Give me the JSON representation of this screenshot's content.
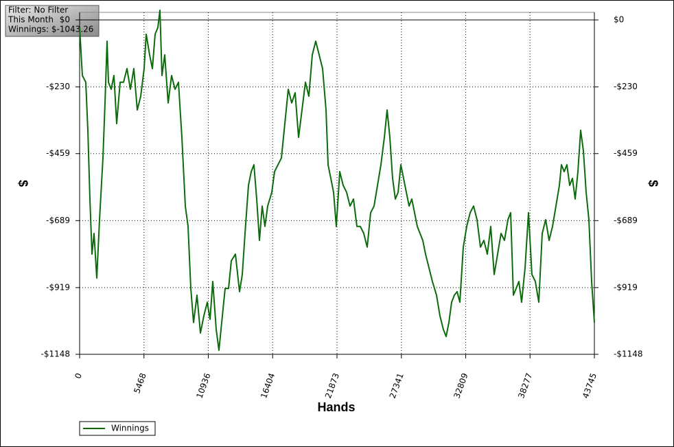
{
  "chart_data": {
    "type": "line",
    "annotations": [
      "Filter: No Filter",
      "This Month",
      "Winnings: $-1043.26"
    ],
    "x_label": "Hands",
    "y_label": "$",
    "y2_label": "$",
    "xlim": [
      0,
      43745
    ],
    "xticks": [
      0,
      5468,
      10936,
      16404,
      21873,
      27341,
      32809,
      38277,
      43745
    ],
    "ylim": [
      -1148,
      26
    ],
    "yticks": [
      {
        "value": 0,
        "label": "$0"
      },
      {
        "value": -230,
        "label": "-$230"
      },
      {
        "value": -459,
        "label": "-$459"
      },
      {
        "value": -689,
        "label": "-$689"
      },
      {
        "value": -919,
        "label": "-$919"
      },
      {
        "value": -1148,
        "label": "-$1148"
      }
    ],
    "grid": true,
    "legend": "bottom-left",
    "x": [
      0,
      233,
      525,
      700,
      875,
      1050,
      1225,
      1458,
      1691,
      1983,
      2158,
      2333,
      2450,
      2683,
      2916,
      3150,
      3441,
      3733,
      4025,
      4316,
      4608,
      4899,
      5191,
      5483,
      5658,
      5949,
      6183,
      6416,
      6649,
      6824,
      6999,
      7233,
      7524,
      7816,
      8107,
      8399,
      8691,
      8982,
      9216,
      9449,
      9682,
      9974,
      10266,
      10557,
      10849,
      11082,
      11315,
      11607,
      11840,
      12074,
      12365,
      12657,
      12890,
      13240,
      13590,
      13823,
      14057,
      14348,
      14582,
      14815,
      15048,
      15282,
      15515,
      15748,
      15982,
      16332,
      16565,
      16857,
      17148,
      17440,
      17731,
      18023,
      18315,
      18606,
      18898,
      19190,
      19481,
      19773,
      20064,
      20356,
      20648,
      20939,
      21114,
      21348,
      21581,
      21814,
      22106,
      22398,
      22689,
      22981,
      23272,
      23564,
      23856,
      24147,
      24439,
      24730,
      25022,
      25314,
      25605,
      25897,
      26130,
      26364,
      26597,
      26830,
      27064,
      27297,
      27530,
      27764,
      27997,
      28230,
      28464,
      28697,
      28930,
      29164,
      29397,
      29688,
      29980,
      30330,
      30622,
      30913,
      31147,
      31380,
      31613,
      31847,
      32080,
      32313,
      32605,
      32896,
      33188,
      33480,
      33771,
      34063,
      34355,
      34646,
      34938,
      35230,
      35521,
      35813,
      36104,
      36396,
      36629,
      36863,
      37096,
      37329,
      37563,
      37854,
      38146,
      38437,
      38729,
      39021,
      39312,
      39604,
      39896,
      40187,
      40479,
      40771,
      40946,
      41179,
      41412,
      41646,
      41879,
      42112,
      42345,
      42579,
      42812,
      43045,
      43279,
      43512,
      43745
    ],
    "series": [
      {
        "name": "Winnings",
        "color": "#0b6b0b",
        "values": [
          -26,
          -191,
          -214,
          -379,
          -615,
          -804,
          -733,
          -886,
          -686,
          -474,
          -285,
          -73,
          -214,
          -238,
          -191,
          -356,
          -214,
          -214,
          -167,
          -238,
          -167,
          -309,
          -262,
          -167,
          -49,
          -120,
          -167,
          -49,
          -26,
          33,
          -191,
          -120,
          -285,
          -191,
          -238,
          -214,
          -403,
          -639,
          -709,
          -922,
          -1039,
          -945,
          -1075,
          -1016,
          -969,
          -1028,
          -898,
          -1063,
          -1134,
          -1039,
          -922,
          -922,
          -827,
          -804,
          -933,
          -874,
          -733,
          -568,
          -521,
          -497,
          -615,
          -757,
          -639,
          -709,
          -639,
          -592,
          -521,
          -497,
          -474,
          -356,
          -238,
          -285,
          -250,
          -403,
          -309,
          -214,
          -262,
          -120,
          -73,
          -120,
          -167,
          -309,
          -497,
          -544,
          -592,
          -709,
          -521,
          -568,
          -592,
          -639,
          -615,
          -709,
          -709,
          -733,
          -780,
          -662,
          -639,
          -568,
          -497,
          -403,
          -309,
          -403,
          -544,
          -615,
          -592,
          -497,
          -544,
          -592,
          -639,
          -615,
          -662,
          -709,
          -733,
          -757,
          -804,
          -851,
          -898,
          -945,
          -1016,
          -1063,
          -1087,
          -1039,
          -969,
          -945,
          -933,
          -969,
          -780,
          -709,
          -662,
          -639,
          -686,
          -780,
          -757,
          -804,
          -709,
          -874,
          -804,
          -733,
          -757,
          -686,
          -662,
          -945,
          -922,
          -898,
          -969,
          -851,
          -662,
          -874,
          -898,
          -969,
          -733,
          -686,
          -757,
          -709,
          -639,
          -568,
          -497,
          -521,
          -497,
          -568,
          -544,
          -615,
          -521,
          -379,
          -450,
          -592,
          -686,
          -898,
          -1039
        ]
      }
    ]
  }
}
